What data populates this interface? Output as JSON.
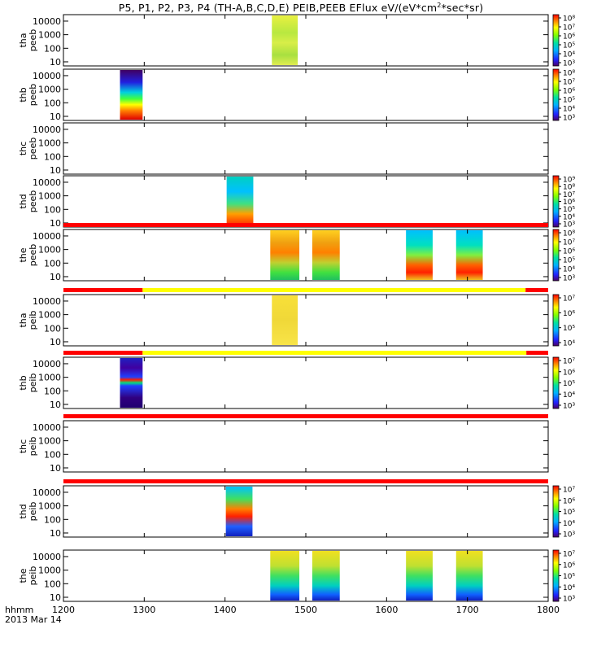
{
  "title": {
    "prefix": "P5, P1, P2, P3, P4 (TH-A,B,C,D,E) PEIB,PEEB EFlux eV/(eV*cm",
    "sup": "2",
    "suffix": "*sec*sr)"
  },
  "footer": {
    "time_label": "hhmm",
    "date_label": "2013 Mar 14"
  },
  "colors": {
    "status_red": "#ff0000",
    "status_yellow": "#ffff00",
    "spec_green": "#33dd22",
    "spec_yellow": "#f0f030"
  },
  "chart_data": {
    "type": "heatmap",
    "x_ticks": [
      "1200",
      "1300",
      "1400",
      "1500",
      "1600",
      "1700",
      "1800"
    ],
    "xlim": [
      1200,
      1800
    ],
    "y_ticks": [
      "10",
      "100",
      "1000",
      "10000"
    ],
    "ylim": [
      5,
      30000
    ],
    "y_scale": "log",
    "panels": [
      {
        "label_line1": "tha",
        "label_line2": "peeb",
        "colorbar_ticks": [
          "10⁸",
          "10⁷",
          "10⁶",
          "10⁵",
          "10⁴",
          "10³"
        ],
        "blocks": [
          {
            "start": 1458,
            "end": 1490,
            "style": "green-yellow"
          }
        ],
        "status_bar": null
      },
      {
        "label_line1": "thb",
        "label_line2": "peeb",
        "colorbar_ticks": [
          "10⁸",
          "10⁷",
          "10⁶",
          "10⁵",
          "10⁴",
          "10³"
        ],
        "blocks": [
          {
            "start": 1270,
            "end": 1298,
            "style": "purple-to-red"
          }
        ],
        "status_bar": null
      },
      {
        "label_line1": "thc",
        "label_line2": "peeb",
        "colorbar_ticks": [],
        "blocks": [],
        "status_bar": null
      },
      {
        "label_line1": "thd",
        "label_line2": "peeb",
        "colorbar_ticks": [
          "10⁹",
          "10⁸",
          "10⁷",
          "10⁶",
          "10⁵",
          "10⁴",
          "10³"
        ],
        "blocks": [
          {
            "start": 1402,
            "end": 1435,
            "style": "cyan-red"
          }
        ],
        "status_bar": null
      },
      {
        "label_line1": "the",
        "label_line2": "peeb",
        "colorbar_ticks": [
          "10⁸",
          "10⁷",
          "10⁶",
          "10⁵",
          "10⁴",
          "10³"
        ],
        "blocks": [
          {
            "start": 1456,
            "end": 1492,
            "style": "green-orange"
          },
          {
            "start": 1508,
            "end": 1542,
            "style": "green-orange"
          },
          {
            "start": 1624,
            "end": 1657,
            "style": "cyan-orange"
          },
          {
            "start": 1686,
            "end": 1719,
            "style": "cyan-orange"
          }
        ],
        "status_bar": {
          "segments": [
            {
              "start": 1200,
              "end": 1800,
              "color": "red"
            }
          ]
        }
      },
      {
        "label_line1": "tha",
        "label_line2": "peib",
        "colorbar_ticks": [
          "10⁷",
          "10⁶",
          "10⁵",
          "10⁴"
        ],
        "blocks": [
          {
            "start": 1458,
            "end": 1490,
            "style": "yellow"
          }
        ],
        "status_bar": {
          "segments": [
            {
              "start": 1200,
              "end": 1298,
              "color": "red"
            },
            {
              "start": 1298,
              "end": 1772,
              "color": "yellow"
            },
            {
              "start": 1772,
              "end": 1800,
              "color": "red"
            }
          ]
        }
      },
      {
        "label_line1": "thb",
        "label_line2": "peib",
        "colorbar_ticks": [
          "10⁷",
          "10⁶",
          "10⁵",
          "10⁴",
          "10³"
        ],
        "blocks": [
          {
            "start": 1270,
            "end": 1298,
            "style": "purple-band"
          }
        ],
        "status_bar": {
          "segments": [
            {
              "start": 1200,
              "end": 1298,
              "color": "red"
            },
            {
              "start": 1298,
              "end": 1773,
              "color": "yellow"
            },
            {
              "start": 1773,
              "end": 1800,
              "color": "red"
            }
          ]
        }
      },
      {
        "label_line1": "thc",
        "label_line2": "peib",
        "colorbar_ticks": [],
        "blocks": [],
        "status_bar": {
          "segments": [
            {
              "start": 1200,
              "end": 1800,
              "color": "red"
            }
          ]
        }
      },
      {
        "label_line1": "thd",
        "label_line2": "peib",
        "colorbar_ticks": [
          "10⁷",
          "10⁶",
          "10⁵",
          "10⁴",
          "10³"
        ],
        "blocks": [
          {
            "start": 1401,
            "end": 1434,
            "style": "blue-red"
          }
        ],
        "status_bar": {
          "segments": [
            {
              "start": 1200,
              "end": 1800,
              "color": "red"
            }
          ]
        }
      },
      {
        "label_line1": "the",
        "label_line2": "peib",
        "colorbar_ticks": [
          "10⁷",
          "10⁶",
          "10⁵",
          "10⁴",
          "10³"
        ],
        "blocks": [
          {
            "start": 1456,
            "end": 1492,
            "style": "blue-yellow"
          },
          {
            "start": 1508,
            "end": 1542,
            "style": "blue-yellow"
          },
          {
            "start": 1624,
            "end": 1657,
            "style": "blue-yellow"
          },
          {
            "start": 1686,
            "end": 1719,
            "style": "blue-yellow"
          }
        ],
        "status_bar": null
      }
    ]
  }
}
